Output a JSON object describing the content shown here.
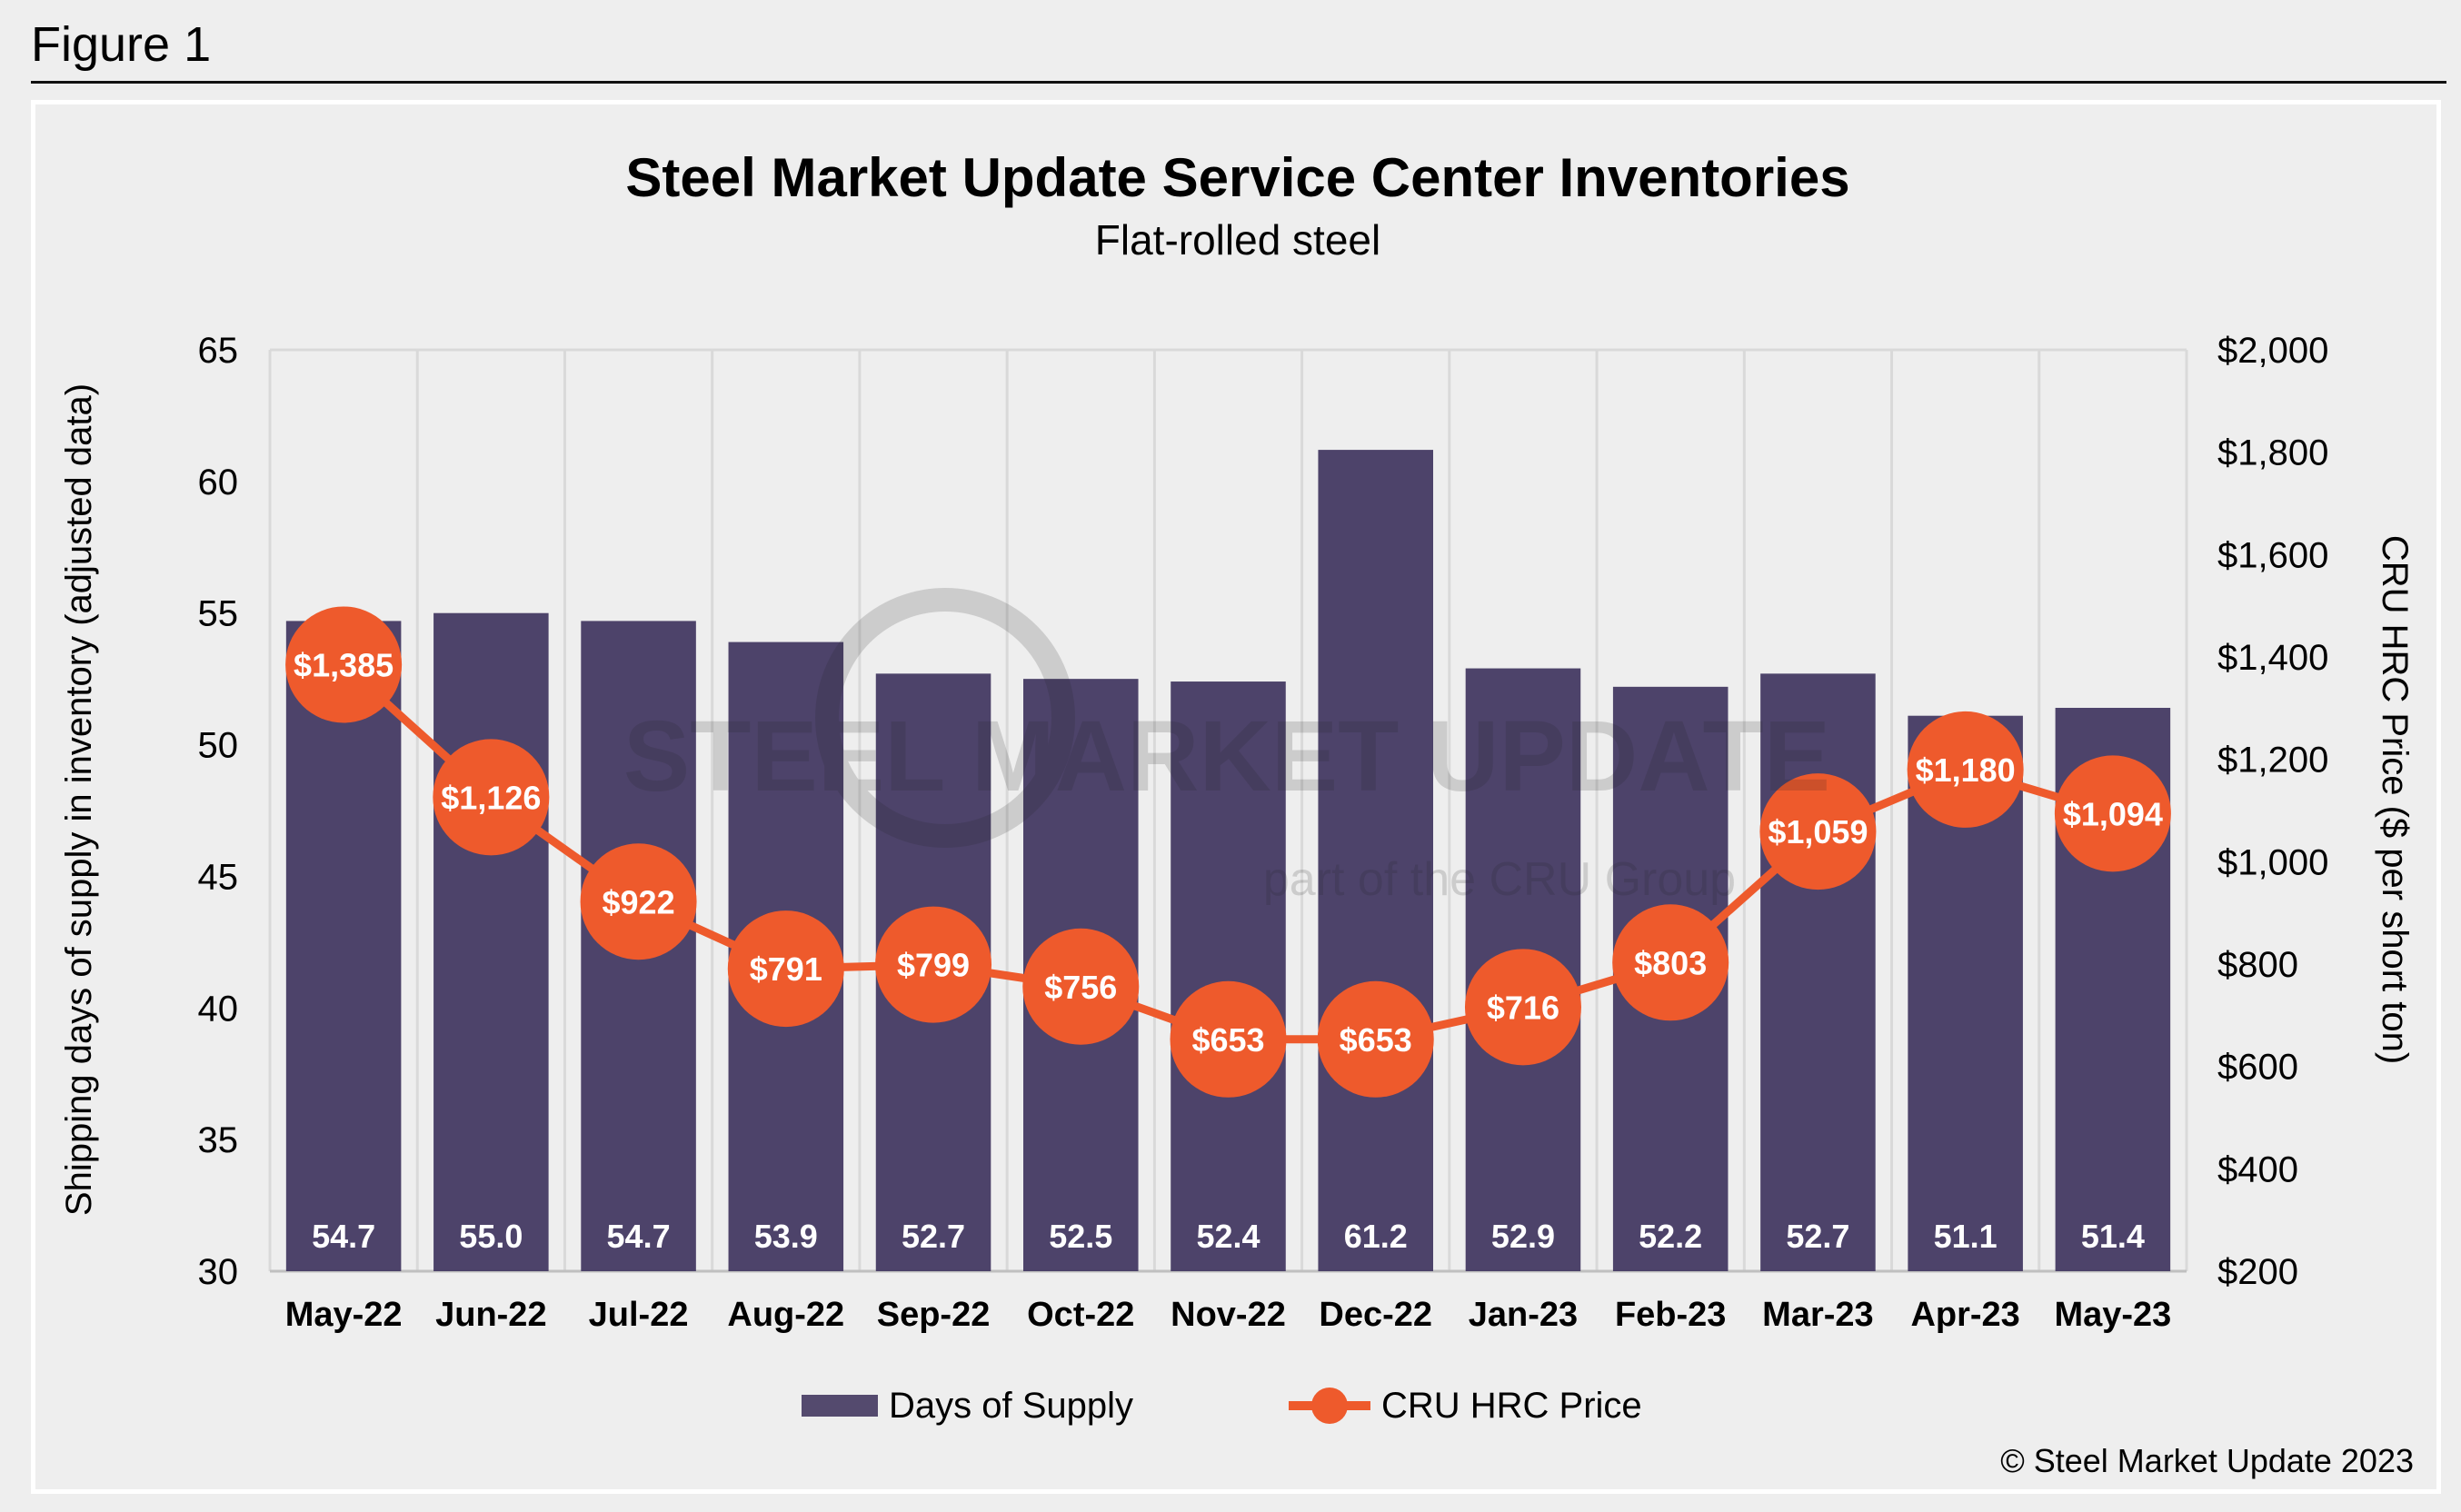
{
  "figure_label": "Figure 1",
  "copyright": "© Steel Market Update 2023",
  "watermark": {
    "line1": "STEEL MARKET UPDATE",
    "line2": "part of the CRU Group"
  },
  "colors": {
    "bars": "#473d65",
    "line": "#ee5a2c",
    "grid": "#d9d9d9",
    "background": "#eeeeee"
  },
  "chart_data": {
    "type": "bar+line",
    "title": "Steel Market Update Service Center Inventories",
    "subtitle": "Flat-rolled steel",
    "ylabel": "Shipping days of supply in inventory (adjusted data)",
    "y2label": "CRU HRC Price ($ per short ton)",
    "ylim": [
      30,
      65
    ],
    "y2lim": [
      200,
      2000
    ],
    "yticks": [
      "30",
      "35",
      "40",
      "45",
      "50",
      "55",
      "60",
      "65"
    ],
    "y2ticks": [
      "$200",
      "$400",
      "$600",
      "$800",
      "$1,000",
      "$1,200",
      "$1,400",
      "$1,600",
      "$1,800",
      "$2,000"
    ],
    "grid": "vertical",
    "legend_position": "bottom",
    "categories": [
      "May-22",
      "Jun-22",
      "Jul-22",
      "Aug-22",
      "Sep-22",
      "Oct-22",
      "Nov-22",
      "Dec-22",
      "Jan-23",
      "Feb-23",
      "Mar-23",
      "Apr-23",
      "May-23"
    ],
    "series": [
      {
        "name": "Days of Supply",
        "type": "bar",
        "axis": "left",
        "values": [
          54.7,
          55.0,
          54.7,
          53.9,
          52.7,
          52.5,
          52.4,
          61.2,
          52.9,
          52.2,
          52.7,
          51.1,
          51.4
        ],
        "labels": [
          "54.7",
          "55.0",
          "54.7",
          "53.9",
          "52.7",
          "52.5",
          "52.4",
          "61.2",
          "52.9",
          "52.2",
          "52.7",
          "51.1",
          "51.4"
        ]
      },
      {
        "name": "CRU HRC Price",
        "type": "line",
        "axis": "right",
        "values": [
          1385,
          1126,
          922,
          791,
          799,
          756,
          653,
          653,
          716,
          803,
          1059,
          1180,
          1094
        ],
        "labels": [
          "$1,385",
          "$1,126",
          "$922",
          "$791",
          "$799",
          "$756",
          "$653",
          "$653",
          "$716",
          "$803",
          "$1,059",
          "$1,180",
          "$1,094"
        ]
      }
    ]
  }
}
